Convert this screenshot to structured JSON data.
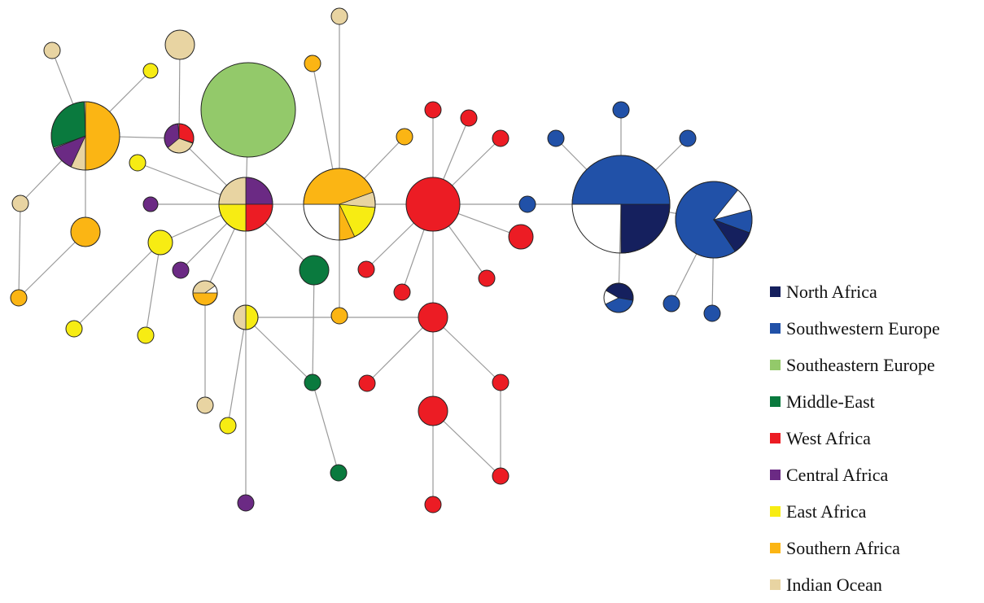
{
  "legend": [
    {
      "key": "north_africa",
      "label": "North Africa",
      "color": "#15205e"
    },
    {
      "key": "southwestern_europe",
      "label": "Southwestern Europe",
      "color": "#2151a8"
    },
    {
      "key": "southeastern_europe",
      "label": "Southeastern Europe",
      "color": "#93c96a"
    },
    {
      "key": "middle_east",
      "label": "Middle-East",
      "color": "#0a7a3e"
    },
    {
      "key": "west_africa",
      "label": "West Africa",
      "color": "#ec1c24"
    },
    {
      "key": "central_africa",
      "label": "Central Africa",
      "color": "#6b2a84"
    },
    {
      "key": "east_africa",
      "label": "East Africa",
      "color": "#f7ec13"
    },
    {
      "key": "southern_africa",
      "label": "Southern Africa",
      "color": "#fbb514"
    },
    {
      "key": "indian_ocean",
      "label": "Indian Ocean",
      "color": "#e8d4a2"
    }
  ]
}
